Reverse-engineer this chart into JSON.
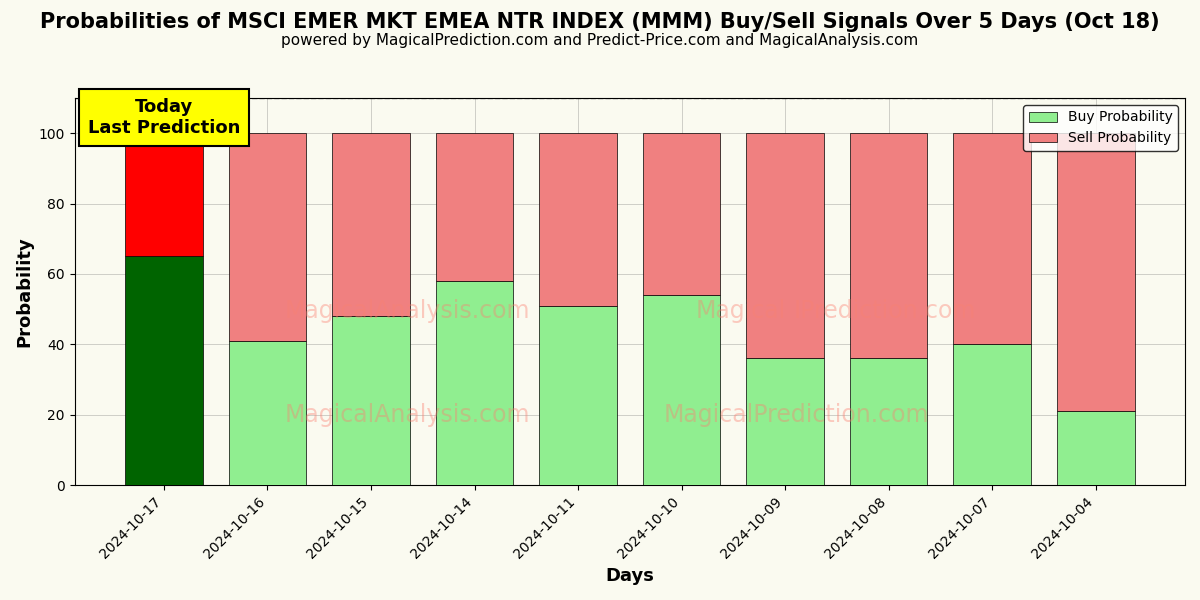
{
  "title": "Probabilities of MSCI EMER MKT EMEA NTR INDEX (MMM) Buy/Sell Signals Over 5 Days (Oct 18)",
  "subtitle": "powered by MagicalPrediction.com and Predict-Price.com and MagicalAnalysis.com",
  "xlabel": "Days",
  "ylabel": "Probability",
  "days": [
    "2024-10-17",
    "2024-10-16",
    "2024-10-15",
    "2024-10-14",
    "2024-10-11",
    "2024-10-10",
    "2024-10-09",
    "2024-10-08",
    "2024-10-07",
    "2024-10-04"
  ],
  "buy_values": [
    65,
    41,
    48,
    58,
    51,
    54,
    36,
    36,
    40,
    21
  ],
  "sell_values": [
    35,
    59,
    52,
    42,
    49,
    46,
    64,
    64,
    60,
    79
  ],
  "today_buy_color": "#006400",
  "today_sell_color": "#FF0000",
  "buy_color": "#90EE90",
  "sell_color": "#F08080",
  "today_annotation": "Today\nLast Prediction",
  "annotation_bg": "#FFFF00",
  "ylim": [
    0,
    110
  ],
  "dashed_line_y": 110,
  "legend_buy": "Buy Probability",
  "legend_sell": "Sell Probability",
  "title_fontsize": 15,
  "subtitle_fontsize": 11,
  "axis_label_fontsize": 13,
  "tick_fontsize": 10,
  "bar_width": 0.75
}
